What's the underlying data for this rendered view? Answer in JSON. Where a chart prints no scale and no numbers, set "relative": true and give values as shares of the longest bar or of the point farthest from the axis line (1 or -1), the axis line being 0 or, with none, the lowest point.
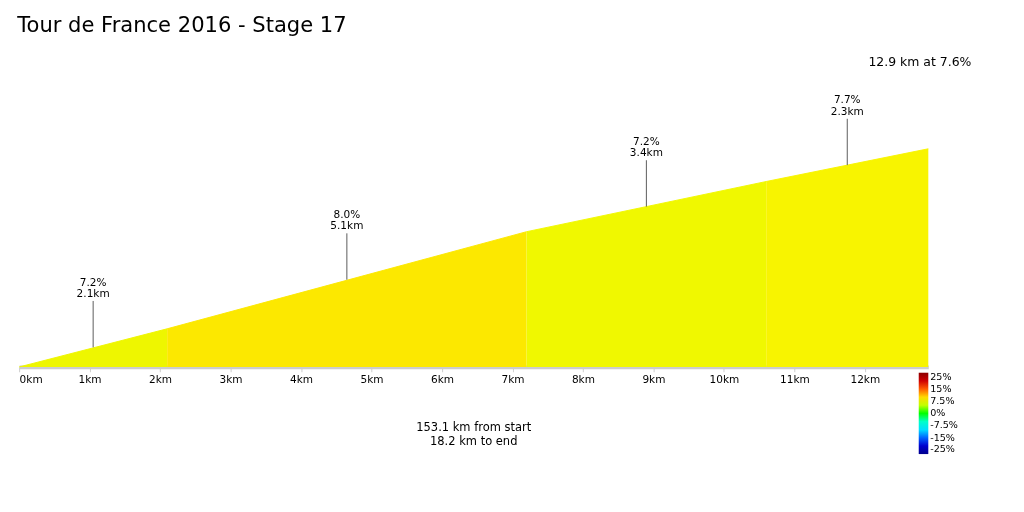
{
  "chart_data": {
    "type": "area",
    "title": "Tour de France 2016 - Stage 17",
    "relative": true,
    "xlim": [
      0,
      12.9
    ],
    "xticks": [
      {
        "value": 0,
        "label": "0km"
      },
      {
        "value": 1,
        "label": "1km"
      },
      {
        "value": 2,
        "label": "2km"
      },
      {
        "value": 3,
        "label": "3km"
      },
      {
        "value": 4,
        "label": "4km"
      },
      {
        "value": 5,
        "label": "5km"
      },
      {
        "value": 6,
        "label": "6km"
      },
      {
        "value": 7,
        "label": "7km"
      },
      {
        "value": 8,
        "label": "8km"
      },
      {
        "value": 9,
        "label": "9km"
      },
      {
        "value": 10,
        "label": "10km"
      },
      {
        "value": 11,
        "label": "11km"
      },
      {
        "value": 12,
        "label": "12km"
      }
    ],
    "series": [
      {
        "x": [
          0,
          2.1
        ],
        "values": [
          0,
          0.175
        ],
        "color": "#eef600"
      },
      {
        "x": [
          2.1,
          7.2
        ],
        "values": [
          0.175,
          0.62
        ],
        "color": "#fce800"
      },
      {
        "x": [
          7.2,
          10.6
        ],
        "values": [
          0.62,
          0.85
        ],
        "color": "#f0f800"
      },
      {
        "x": [
          10.6,
          12.9
        ],
        "values": [
          0.85,
          1
        ],
        "color": "#f8f400"
      }
    ],
    "annotations": [
      {
        "text": "7.2%\n2.1km",
        "x": 1.05,
        "y": 0.09
      },
      {
        "text": "8.0%\n5.1km",
        "x": 4.65,
        "y": 0.4
      },
      {
        "text": "7.2%\n3.4km",
        "x": 8.9,
        "y": 0.735
      },
      {
        "text": "7.7%\n2.3km",
        "x": 11.75,
        "y": 0.925
      },
      "12.9 km at 7.6%",
      "153.1 km from start\n18.2 km to end"
    ],
    "clim": [
      -25,
      25
    ],
    "cticks": [
      {
        "value": 25,
        "label": "25%"
      },
      {
        "value": 15,
        "label": "15%"
      },
      {
        "value": 7.5,
        "label": "7.5%"
      },
      {
        "value": 0,
        "label": "0%"
      },
      {
        "value": -7.5,
        "label": "-7.5%"
      },
      {
        "value": -15,
        "label": "-15%"
      },
      {
        "value": -25,
        "label": "-25%"
      }
    ],
    "grid": false
  }
}
